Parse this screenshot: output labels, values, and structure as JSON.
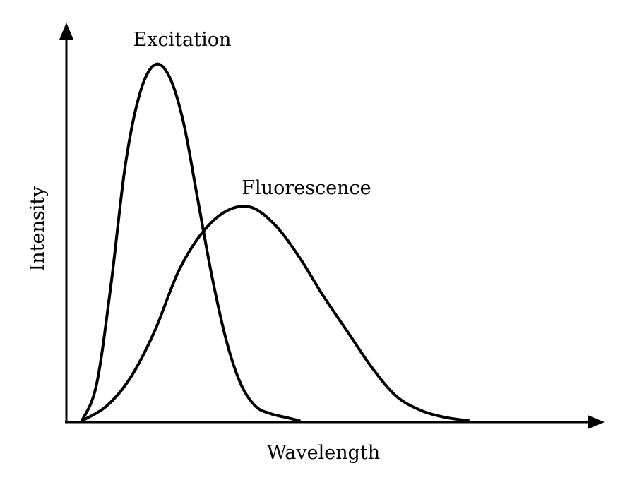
{
  "chart_data": {
    "type": "line",
    "title": "",
    "xlabel": "Wavelength",
    "ylabel": "Intensity",
    "xlim": [
      0,
      100
    ],
    "ylim": [
      0,
      100
    ],
    "grid": false,
    "legend": "none",
    "ticks": "none",
    "series": [
      {
        "name": "Excitation",
        "x": [
          0,
          3,
          6,
          9,
          12,
          15,
          18,
          21,
          24,
          27,
          30,
          33,
          36,
          39,
          42,
          45
        ],
        "y": [
          0,
          10,
          38,
          72,
          92,
          100,
          97,
          84,
          62,
          40,
          22,
          10,
          4,
          2,
          1,
          0
        ]
      },
      {
        "name": "Fluorescence",
        "x": [
          0,
          5,
          10,
          15,
          20,
          25,
          30,
          35,
          40,
          45,
          50,
          55,
          60,
          65,
          70,
          75,
          80
        ],
        "y": [
          0,
          4,
          12,
          25,
          42,
          53,
          59,
          60,
          55,
          46,
          35,
          25,
          15,
          7,
          3,
          1,
          0
        ]
      }
    ],
    "colors": {
      "line": "#000000",
      "axis": "#000000"
    }
  }
}
